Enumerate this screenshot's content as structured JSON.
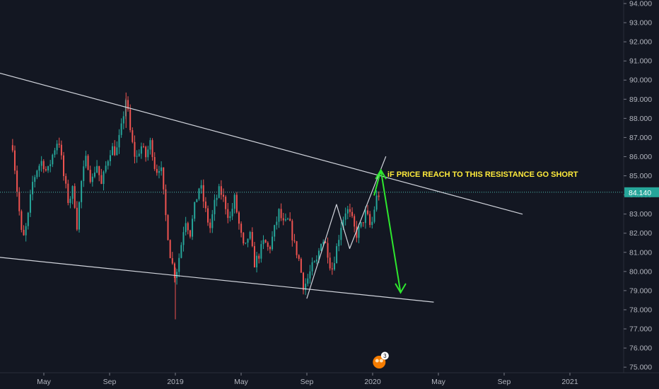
{
  "chart_data": {
    "type": "candlestick",
    "y_axis": {
      "range": [
        74.6,
        94.2
      ],
      "ticks": [
        "94.000",
        "93.000",
        "92.000",
        "91.000",
        "90.000",
        "89.000",
        "88.000",
        "87.000",
        "86.000",
        "85.000",
        "84.000",
        "83.000",
        "82.000",
        "81.000",
        "80.000",
        "79.000",
        "78.000",
        "77.000",
        "76.000",
        "75.000"
      ]
    },
    "x_axis": {
      "ticks": [
        {
          "label": "May",
          "month": 5
        },
        {
          "label": "Sep",
          "month": 9
        },
        {
          "label": "2019",
          "month": 13
        },
        {
          "label": "May",
          "month": 17
        },
        {
          "label": "Sep",
          "month": 21
        },
        {
          "label": "2020",
          "month": 25
        },
        {
          "label": "May",
          "month": 29
        },
        {
          "label": "Sep",
          "month": 33
        },
        {
          "label": "2021",
          "month": 37
        }
      ]
    },
    "current_price": {
      "value": 84.14,
      "label": "84.140"
    },
    "price_path": [
      [
        3.1,
        86.6
      ],
      [
        3.4,
        84.0
      ],
      [
        3.7,
        81.5
      ],
      [
        4.0,
        82.6
      ],
      [
        4.3,
        84.6
      ],
      [
        4.6,
        85.4
      ],
      [
        4.9,
        85.8
      ],
      [
        5.2,
        85.1
      ],
      [
        5.6,
        86.3
      ],
      [
        5.9,
        87.0
      ],
      [
        6.2,
        85.0
      ],
      [
        6.5,
        83.6
      ],
      [
        6.8,
        84.4
      ],
      [
        7.0,
        82.3
      ],
      [
        7.3,
        84.8
      ],
      [
        7.6,
        86.0
      ],
      [
        7.9,
        84.6
      ],
      [
        8.2,
        85.7
      ],
      [
        8.5,
        84.5
      ],
      [
        8.8,
        85.6
      ],
      [
        9.1,
        86.5
      ],
      [
        9.4,
        86.2
      ],
      [
        9.7,
        87.4
      ],
      [
        10.0,
        89.1
      ],
      [
        10.3,
        87.0
      ],
      [
        10.6,
        85.8
      ],
      [
        10.9,
        86.6
      ],
      [
        11.2,
        86.0
      ],
      [
        11.5,
        86.8
      ],
      [
        11.8,
        85.2
      ],
      [
        12.1,
        85.6
      ],
      [
        12.4,
        83.0
      ],
      [
        12.7,
        80.8
      ],
      [
        13.0,
        79.7
      ],
      [
        13.3,
        81.1
      ],
      [
        13.6,
        82.8
      ],
      [
        13.9,
        82.0
      ],
      [
        14.2,
        83.5
      ],
      [
        14.5,
        84.6
      ],
      [
        14.8,
        83.3
      ],
      [
        15.1,
        82.2
      ],
      [
        15.4,
        83.6
      ],
      [
        15.7,
        84.3
      ],
      [
        16.0,
        83.6
      ],
      [
        16.3,
        82.7
      ],
      [
        16.6,
        83.8
      ],
      [
        16.9,
        82.3
      ],
      [
        17.2,
        81.0
      ],
      [
        17.5,
        82.1
      ],
      [
        17.8,
        80.4
      ],
      [
        18.1,
        80.9
      ],
      [
        18.4,
        81.6
      ],
      [
        18.7,
        81.1
      ],
      [
        19.0,
        82.1
      ],
      [
        19.3,
        83.1
      ],
      [
        19.6,
        82.4
      ],
      [
        19.9,
        82.7
      ],
      [
        20.2,
        81.5
      ],
      [
        20.5,
        80.7
      ],
      [
        20.8,
        79.2
      ],
      [
        21.0,
        79.5
      ],
      [
        21.3,
        80.2
      ],
      [
        21.6,
        80.5
      ],
      [
        21.9,
        81.8
      ],
      [
        22.2,
        81.3
      ],
      [
        22.5,
        80.0
      ],
      [
        22.8,
        81.2
      ],
      [
        23.1,
        82.5
      ],
      [
        23.4,
        83.3
      ],
      [
        23.7,
        82.8
      ],
      [
        24.0,
        81.9
      ],
      [
        24.3,
        82.4
      ],
      [
        24.6,
        83.1
      ],
      [
        24.9,
        82.2
      ],
      [
        25.2,
        83.8
      ],
      [
        25.5,
        84.2
      ]
    ],
    "series": [
      {
        "kind": "trendline",
        "color": "#d1d4dc",
        "points": [
          [
            0.0,
            90.9
          ],
          [
            34.1,
            83.0
          ]
        ]
      },
      {
        "kind": "trendline",
        "color": "#d1d4dc",
        "points": [
          [
            0.5,
            80.9
          ],
          [
            28.7,
            78.4
          ]
        ]
      },
      {
        "kind": "trendline",
        "color": "#d1d4dc",
        "points": [
          [
            21.0,
            78.6
          ],
          [
            22.8,
            83.5
          ],
          [
            23.6,
            81.2
          ],
          [
            25.8,
            86.0
          ]
        ]
      },
      {
        "kind": "arrow",
        "color": "#2ee82e",
        "points": [
          [
            25.1,
            84.0
          ],
          [
            25.5,
            85.3
          ],
          [
            26.7,
            78.9
          ]
        ]
      }
    ],
    "annotations": [
      {
        "text": "iF PRICE REACH TO THIS RESISTANCE GO SHORT",
        "x": 25.9,
        "y": 85.1,
        "color": "#ffeb3b"
      }
    ],
    "event_badge": {
      "count": "3",
      "month": 25.4
    }
  }
}
